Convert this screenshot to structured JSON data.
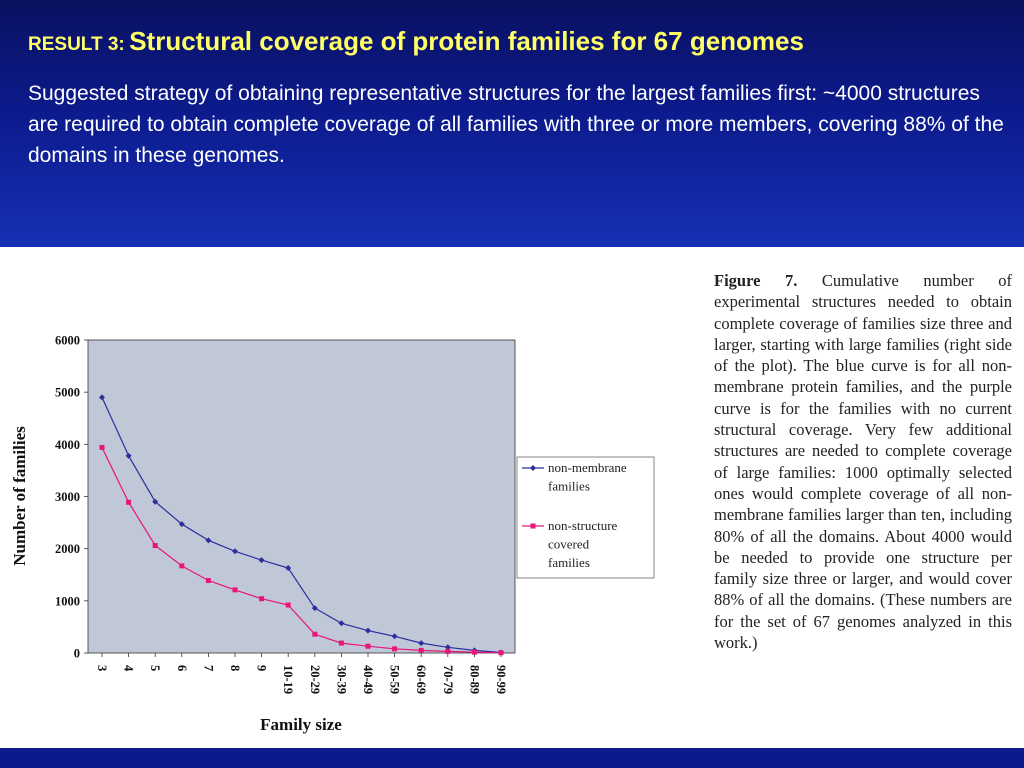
{
  "header": {
    "result_label": "RESULT 3:",
    "title": "Structural coverage of protein families for 67 genomes",
    "subtitle": "Suggested strategy of obtaining representative structures for the largest families first: ~4000 structures are required to obtain complete coverage of all families with three or more members, covering 88% of the domains in these genomes."
  },
  "figure": {
    "caption_label": "Figure 7.",
    "caption_text": "Cumulative number of experimental structures needed to obtain complete coverage of families size three and larger, starting with large families (right side of the plot). The blue curve is for all non-membrane protein families, and the purple curve is for the families with no current structural coverage. Very few additional structures are needed to complete coverage of large families: 1000 optimally selected ones would complete coverage of all non-membrane families larger than ten, including 80% of all the domains. About 4000 would be needed to provide one structure per family size three or larger, and would cover 88% of all the domains. (These numbers are for the set of 67 genomes analyzed in this work.)"
  },
  "colors": {
    "header_top": "#0a1160",
    "header_bottom": "#1530b4",
    "title": "#ffff66",
    "plot_bg": "#c0c8d8",
    "series_blue": "#2b2f9e",
    "series_pink": "#e8157a"
  },
  "chart_data": {
    "type": "line",
    "title": "",
    "xlabel": "Family size",
    "ylabel": "Number of families",
    "categories": [
      "3",
      "4",
      "5",
      "6",
      "7",
      "8",
      "9",
      "10-19",
      "20-29",
      "30-39",
      "40-49",
      "50-59",
      "60-69",
      "70-79",
      "80-89",
      "90-99"
    ],
    "ylim": [
      0,
      6000
    ],
    "yticks": [
      0,
      1000,
      2000,
      3000,
      4000,
      5000,
      6000
    ],
    "grid": false,
    "legend_position": "right",
    "series": [
      {
        "name": "non-membrane families",
        "legend_lines": [
          "non-membrane",
          "families"
        ],
        "color": "#2b2f9e",
        "marker": "diamond",
        "values": [
          4900,
          3780,
          2900,
          2470,
          2160,
          1950,
          1780,
          1630,
          860,
          570,
          430,
          320,
          190,
          110,
          50,
          10
        ]
      },
      {
        "name": "non-structure covered families",
        "legend_lines": [
          "non-structure",
          "covered",
          "families"
        ],
        "color": "#e8157a",
        "marker": "square",
        "values": [
          3940,
          2890,
          2060,
          1670,
          1390,
          1210,
          1040,
          920,
          360,
          190,
          130,
          80,
          50,
          30,
          15,
          5
        ]
      }
    ]
  }
}
